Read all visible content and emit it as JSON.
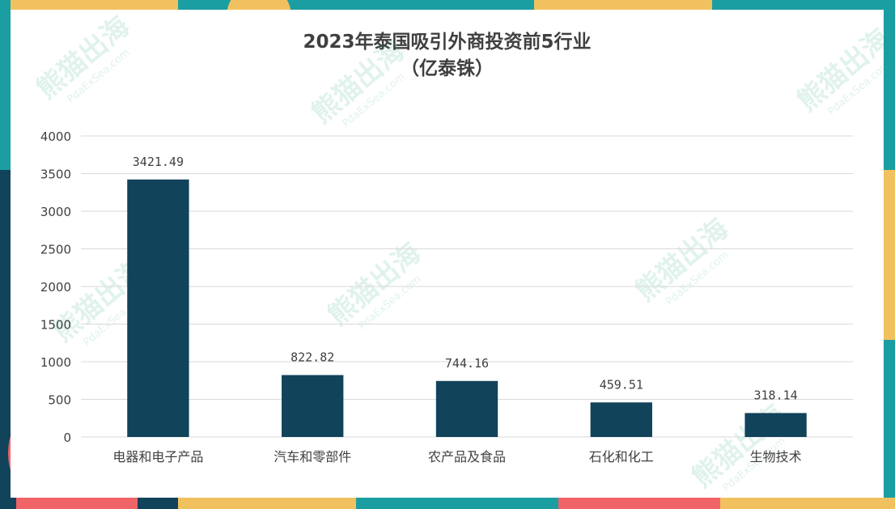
{
  "colors": {
    "bar": "#11435a",
    "grid": "#d9d9d9",
    "text": "#404040",
    "frame_teal": "#1b9ea2",
    "frame_yellow": "#f2c15f",
    "frame_navy": "#11435a",
    "frame_coral": "#f06467"
  },
  "watermark": {
    "text": "熊猫出海",
    "url": "PdaExSea.com"
  },
  "chart_data": {
    "type": "bar",
    "title_line1": "2023年泰国吸引外商投资前5行业",
    "title_line2": "（亿泰铢）",
    "categories": [
      "电器和电子产品",
      "汽车和零部件",
      "农产品及食品",
      "石化和化工",
      "生物技术"
    ],
    "values": [
      3421.49,
      822.82,
      744.16,
      459.51,
      318.14
    ],
    "data_labels": [
      "3421.49",
      "822.82",
      "744.16",
      "459.51",
      "318.14"
    ],
    "ylim": [
      0,
      4000
    ],
    "yticks": [
      "0",
      "500",
      "1000",
      "1500",
      "2000",
      "2500",
      "3000",
      "3500",
      "4000"
    ],
    "xlabel": "",
    "ylabel": "",
    "grid": true,
    "legend": "none"
  }
}
